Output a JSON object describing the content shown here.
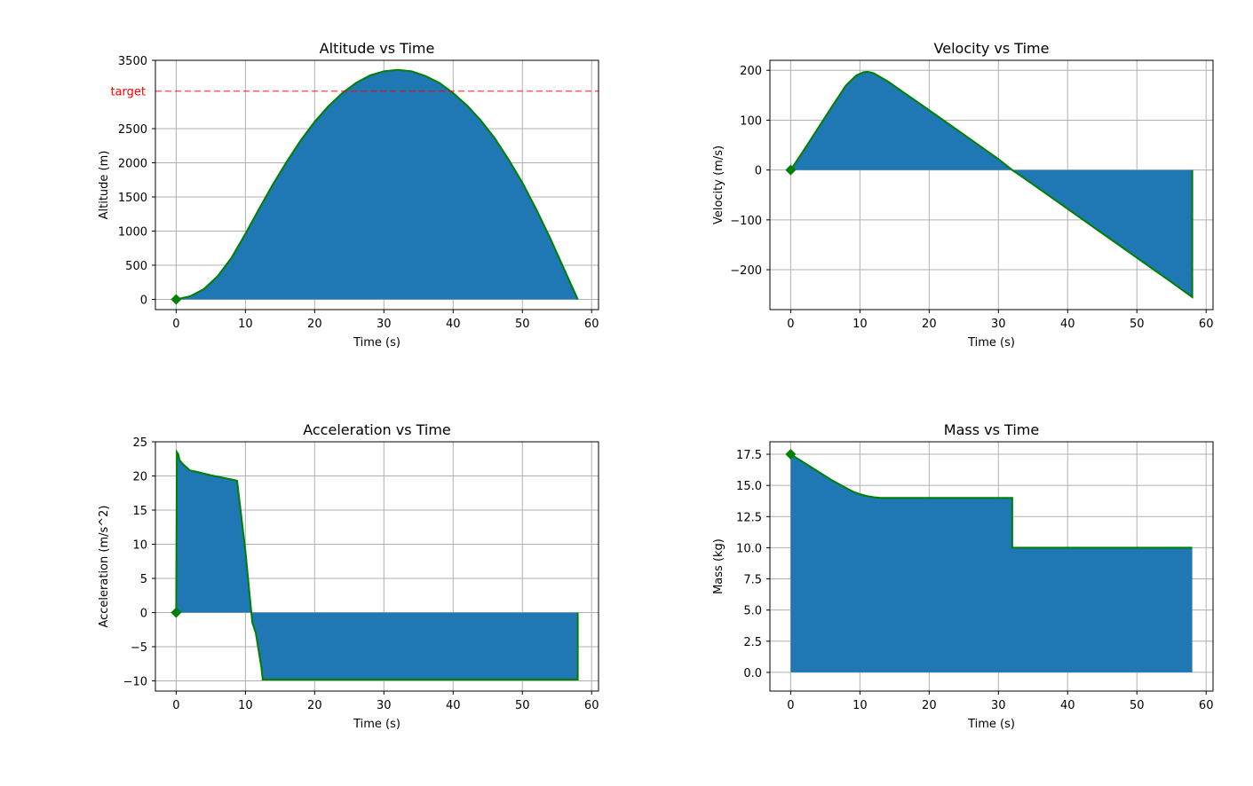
{
  "chart_data": [
    {
      "type": "area",
      "title": "Altitude vs Time",
      "xlabel": "Time (s)",
      "ylabel": "Altitude (m)",
      "xlim": [
        -3,
        61
      ],
      "ylim": [
        -150,
        3500
      ],
      "xticks": [
        0,
        10,
        20,
        30,
        40,
        50,
        60
      ],
      "yticks": [
        0,
        500,
        1000,
        1500,
        2000,
        2500,
        3500
      ],
      "hline": {
        "y": 3050,
        "label": "target",
        "color": "#ff0000",
        "style": "dashed"
      },
      "marker": {
        "x": 0,
        "y": 0,
        "shape": "diamond",
        "color": "#008000"
      },
      "fill_color": "#1f77b4",
      "line_color": "#008000",
      "x": [
        0,
        2,
        4,
        6,
        8,
        10,
        12,
        14,
        16,
        18,
        20,
        22,
        24,
        26,
        28,
        30,
        32,
        34,
        36,
        38,
        40,
        42,
        44,
        46,
        48,
        50,
        52,
        54,
        56,
        58
      ],
      "y": [
        0,
        45,
        150,
        340,
        610,
        960,
        1330,
        1690,
        2020,
        2330,
        2600,
        2830,
        3020,
        3170,
        3280,
        3340,
        3360,
        3340,
        3270,
        3170,
        3020,
        2840,
        2620,
        2360,
        2050,
        1710,
        1320,
        900,
        450,
        0
      ]
    },
    {
      "type": "area",
      "title": "Velocity vs Time",
      "xlabel": "Time (s)",
      "ylabel": "Velocity (m/s)",
      "xlim": [
        -3,
        61
      ],
      "ylim": [
        -280,
        220
      ],
      "xticks": [
        0,
        10,
        20,
        30,
        40,
        50,
        60
      ],
      "yticks": [
        -200,
        -100,
        0,
        100,
        200
      ],
      "marker": {
        "x": 0,
        "y": 0,
        "shape": "diamond",
        "color": "#008000"
      },
      "fill_color": "#1f77b4",
      "line_color": "#008000",
      "x": [
        0,
        2,
        4,
        6,
        8,
        9.5,
        10.5,
        11,
        11.5,
        12,
        13,
        14,
        20,
        25,
        30,
        32,
        35,
        40,
        45,
        50,
        55,
        58,
        58
      ],
      "y": [
        0,
        42,
        85,
        128,
        170,
        190,
        196,
        197,
        196,
        194,
        186,
        178,
        120,
        71,
        22,
        0,
        -29,
        -78,
        -127,
        -176,
        -225,
        -255,
        0
      ]
    },
    {
      "type": "area",
      "title": "Acceleration vs Time",
      "xlabel": "Time (s)",
      "ylabel": "Acceleration (m/s^2)",
      "xlim": [
        -3,
        61
      ],
      "ylim": [
        -11.5,
        25
      ],
      "xticks": [
        0,
        10,
        20,
        30,
        40,
        50,
        60
      ],
      "yticks": [
        -10,
        -5,
        0,
        5,
        10,
        15,
        20,
        25
      ],
      "marker": {
        "x": 0,
        "y": 0,
        "shape": "diamond",
        "color": "#008000"
      },
      "fill_color": "#1f77b4",
      "line_color": "#008000",
      "x": [
        0,
        0.1,
        0.3,
        0.5,
        1,
        2,
        3,
        5,
        7,
        8.8,
        10,
        11,
        11.5,
        12.3,
        12.5,
        58,
        58
      ],
      "y": [
        0,
        23.5,
        23.2,
        22.3,
        21.7,
        20.8,
        20.6,
        20.1,
        19.7,
        19.3,
        9,
        -1.5,
        -3,
        -8,
        -9.81,
        -9.81,
        0
      ]
    },
    {
      "type": "area",
      "title": "Mass vs Time",
      "xlabel": "Time (s)",
      "ylabel": "Mass (kg)",
      "xlim": [
        -3,
        61
      ],
      "ylim": [
        -1.5,
        18.5
      ],
      "xticks": [
        0,
        10,
        20,
        30,
        40,
        50,
        60
      ],
      "yticks": [
        0.0,
        2.5,
        5.0,
        7.5,
        10.0,
        12.5,
        15.0,
        17.5
      ],
      "ytick_format": "0.0",
      "marker": {
        "x": 0,
        "y": 17.5,
        "shape": "diamond",
        "color": "#008000"
      },
      "fill_color": "#1f77b4",
      "line_color": "#008000",
      "x": [
        0,
        2,
        4,
        6,
        8,
        9,
        10,
        11,
        12,
        13,
        32,
        32,
        58
      ],
      "y": [
        17.5,
        16.8,
        16.1,
        15.4,
        14.8,
        14.5,
        14.3,
        14.15,
        14.05,
        14.0,
        14.0,
        10.0,
        10.0
      ]
    }
  ]
}
